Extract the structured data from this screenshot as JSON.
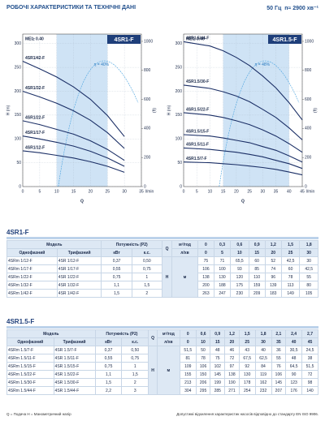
{
  "header": {
    "title": "РОБОЧІ ХАРАКТЕРИСТИКИ ТА ТЕХНІЧНІ ДАНІ",
    "freq": "50 Гц",
    "speed": "n≈ 2900 хв⁻¹"
  },
  "charts": [
    {
      "title": "4SR1-F",
      "mei": "MEI≥ 0.40",
      "eta_label": "η = 40%",
      "x_label": "Q",
      "x_unit": "l/min",
      "y_label": "H (m)",
      "y2_label": "(ft)",
      "xlim": [
        0,
        35
      ],
      "xticks": [
        0,
        5,
        10,
        15,
        20,
        25,
        30,
        35
      ],
      "ylim": [
        0,
        320
      ],
      "yticks": [
        0,
        50,
        100,
        150,
        200,
        250,
        300
      ],
      "y2lim": [
        0,
        1050
      ],
      "y2ticks": [
        0,
        200,
        400,
        600,
        800,
        1000
      ],
      "band": [
        10,
        25
      ],
      "table": 0,
      "curve_labels": [
        "4SR1/12-F",
        "4SR1/17-F",
        "4SR1/22-F",
        "4SR1/32-F",
        "4SR1/42-F"
      ]
    },
    {
      "title": "4SR1.5-F",
      "mei": "MEI≥ 0.40",
      "eta_label": "η = 48%",
      "x_label": "Q",
      "x_unit": "l/min",
      "y_label": "H (m)",
      "y2_label": "(ft)",
      "xlim": [
        0,
        45
      ],
      "xticks": [
        0,
        5,
        10,
        15,
        20,
        25,
        30,
        35,
        40,
        45
      ],
      "ylim": [
        0,
        320
      ],
      "yticks": [
        0,
        50,
        100,
        150,
        200,
        250,
        300
      ],
      "y2lim": [
        0,
        1050
      ],
      "y2ticks": [
        0,
        200,
        400,
        600,
        800,
        1000
      ],
      "band": [
        15,
        40
      ],
      "table": 1,
      "curve_labels": [
        "4SR1.5/7-F",
        "4SR1.5/11-F",
        "4SR1.5/15-F",
        "4SR1.5/22-F",
        "4SR1.5/30-F",
        "4SR1.5/44-F"
      ]
    }
  ],
  "tables": [
    {
      "title": "4SR1-F",
      "head": {
        "model": "Модель",
        "power": "Потужність (P2)",
        "q": "Q",
        "q_unit1": "м³/год",
        "q_unit2": "л/хв",
        "single": "Однофазний",
        "three": "Трифазний",
        "kw": "кВт",
        "hp": "к.с.",
        "h": "H",
        "h_unit": "м"
      },
      "q_m3h": [
        0,
        "0,3",
        "0,6",
        "0,9",
        "1,2",
        "1,5",
        "1,8"
      ],
      "q_lmin": [
        0,
        5,
        10,
        15,
        20,
        25,
        30
      ],
      "rows": [
        {
          "single": "4SRm 1/12-F",
          "three": "4SR 1/12-F",
          "kw": "0,37",
          "hp": "0,50",
          "h": [
            75,
            71,
            "65,5",
            60,
            52,
            "42,5",
            30
          ]
        },
        {
          "single": "4SRm 1/17-F",
          "three": "4SR 1/17-F",
          "kw": "0,55",
          "hp": "0,75",
          "h": [
            106,
            100,
            93,
            85,
            74,
            60,
            "42,5"
          ]
        },
        {
          "single": "4SRm 1/22-F",
          "three": "4SR 1/22-F",
          "kw": "0,75",
          "hp": "1",
          "h": [
            138,
            130,
            120,
            110,
            96,
            78,
            55
          ]
        },
        {
          "single": "4SRm 1/32-F",
          "three": "4SR 1/32-F",
          "kw": "1,1",
          "hp": "1,5",
          "h": [
            200,
            188,
            175,
            159,
            139,
            113,
            80
          ]
        },
        {
          "single": "4SRm 1/42-F",
          "three": "4SR 1/42-F",
          "kw": "1,5",
          "hp": "2",
          "h": [
            263,
            247,
            230,
            209,
            183,
            149,
            105
          ]
        }
      ]
    },
    {
      "title": "4SR1.5-F",
      "head": {
        "model": "Модель",
        "power": "Потужність (P2)",
        "q": "Q",
        "q_unit1": "м³/год",
        "q_unit2": "л/хв",
        "single": "Однофазний",
        "three": "Трифазний",
        "kw": "кВт",
        "hp": "к.с.",
        "h": "H",
        "h_unit": "м"
      },
      "q_m3h": [
        0,
        "0,6",
        "0,9",
        "1,2",
        "1,5",
        "1,8",
        "2,1",
        "2,4",
        "2,7"
      ],
      "q_lmin": [
        0,
        10,
        15,
        20,
        25,
        30,
        35,
        40,
        45
      ],
      "rows": [
        {
          "single": "4SRm 1.5/7-F",
          "three": "4SR 1.5/7-F",
          "kw": "0,37",
          "hp": "0,50",
          "h": [
            "51,5",
            50,
            48,
            46,
            43,
            40,
            36,
            "30,5",
            "24,5"
          ]
        },
        {
          "single": "4SRm 1.5/11-F",
          "three": "4SR 1.5/11-F",
          "kw": "0,55",
          "hp": "0,75",
          "h": [
            81,
            78,
            75,
            72,
            "67,5",
            "62,5",
            55,
            48,
            38
          ]
        },
        {
          "single": "4SRm 1.5/15-F",
          "three": "4SR 1.5/15-F",
          "kw": "0,75",
          "hp": "1",
          "h": [
            109,
            106,
            102,
            97,
            92,
            84,
            76,
            "64,5",
            "51,5"
          ]
        },
        {
          "single": "4SRm 1.5/22-F",
          "three": "4SR 1.5/22-F",
          "kw": "1,1",
          "hp": "1,5",
          "h": [
            155,
            150,
            145,
            138,
            130,
            119,
            106,
            90,
            72
          ]
        },
        {
          "single": "4SRm 1.5/30-F",
          "three": "4SR 1.5/30-F",
          "kw": "1,5",
          "hp": "2",
          "h": [
            213,
            206,
            199,
            190,
            178,
            162,
            145,
            123,
            98
          ]
        },
        {
          "single": "4SRm 1.5/44-F",
          "three": "4SR 1.5/44-F",
          "kw": "2,2",
          "hp": "3",
          "h": [
            304,
            295,
            285,
            271,
            254,
            232,
            207,
            176,
            140
          ]
        }
      ]
    }
  ],
  "footer": {
    "legend": "Q = Подача   H = Манометричний напір",
    "note": "Допустимі відхилення характеристик насосів відповідно до стандарту EN ISO 9906."
  }
}
